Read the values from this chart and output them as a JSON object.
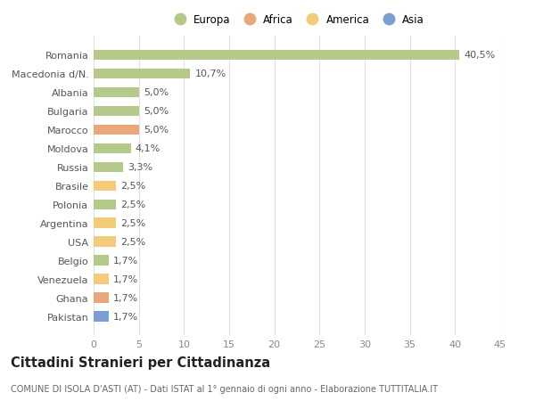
{
  "categories": [
    "Pakistan",
    "Ghana",
    "Venezuela",
    "Belgio",
    "USA",
    "Argentina",
    "Polonia",
    "Brasile",
    "Russia",
    "Moldova",
    "Marocco",
    "Bulgaria",
    "Albania",
    "Macedonia d/N.",
    "Romania"
  ],
  "values": [
    1.7,
    1.7,
    1.7,
    1.7,
    2.5,
    2.5,
    2.5,
    2.5,
    3.3,
    4.1,
    5.0,
    5.0,
    5.0,
    10.7,
    40.5
  ],
  "labels": [
    "1,7%",
    "1,7%",
    "1,7%",
    "1,7%",
    "2,5%",
    "2,5%",
    "2,5%",
    "2,5%",
    "3,3%",
    "4,1%",
    "5,0%",
    "5,0%",
    "5,0%",
    "10,7%",
    "40,5%"
  ],
  "continents": [
    "Asia",
    "Africa",
    "America",
    "Europa",
    "America",
    "America",
    "Europa",
    "America",
    "Europa",
    "Europa",
    "Africa",
    "Europa",
    "Europa",
    "Europa",
    "Europa"
  ],
  "colors": {
    "Europa": "#b5c98a",
    "Africa": "#e8a87c",
    "America": "#f2cc7a",
    "Asia": "#7b9fd4"
  },
  "legend_order": [
    "Europa",
    "Africa",
    "America",
    "Asia"
  ],
  "xlim": [
    0,
    45
  ],
  "xticks": [
    0,
    5,
    10,
    15,
    20,
    25,
    30,
    35,
    40,
    45
  ],
  "title": "Cittadini Stranieri per Cittadinanza",
  "subtitle": "COMUNE DI ISOLA D'ASTI (AT) - Dati ISTAT al 1° gennaio di ogni anno - Elaborazione TUTTITALIA.IT",
  "background_color": "#ffffff",
  "grid_color": "#e0e0e0",
  "bar_height": 0.55,
  "label_fontsize": 8,
  "tick_fontsize": 8,
  "title_fontsize": 10.5,
  "subtitle_fontsize": 7
}
